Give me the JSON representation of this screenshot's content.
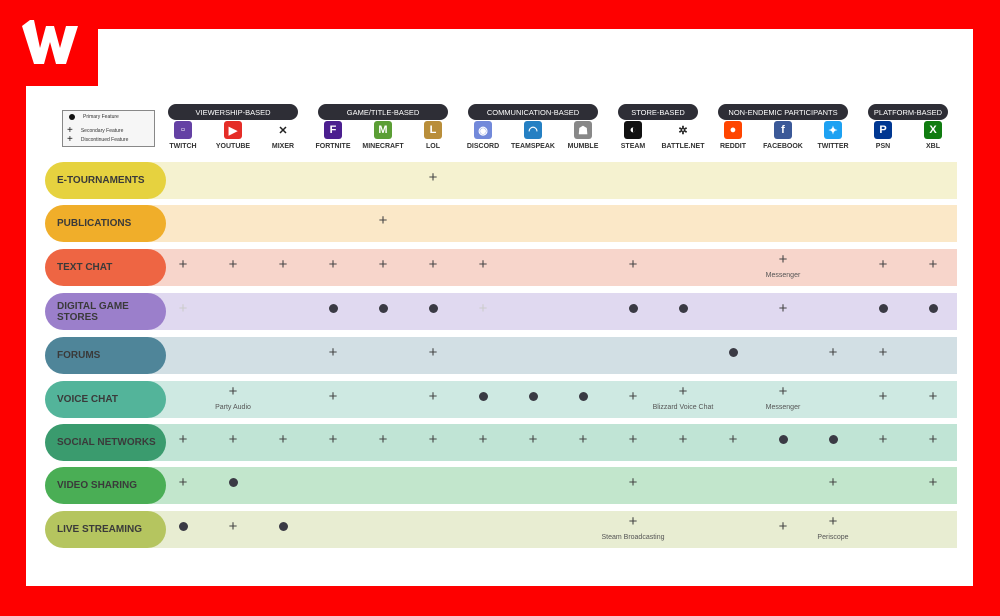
{
  "brand": {
    "logo_text": "W",
    "bg": "#fe0000"
  },
  "legend": {
    "primary": "Primary Feature",
    "secondary": "Secondary Feature",
    "discontinued": "Discontinued Feature"
  },
  "groups": [
    {
      "label": "VIEWERSHIP-BASED",
      "start": 0,
      "end": 2
    },
    {
      "label": "GAME/TITLE-BASED",
      "start": 3,
      "end": 5
    },
    {
      "label": "COMMUNICATION-BASED",
      "start": 6,
      "end": 8
    },
    {
      "label": "STORE-BASED",
      "start": 9,
      "end": 10
    },
    {
      "label": "NON-ENDEMIC PARTICIPANTS",
      "start": 11,
      "end": 13
    },
    {
      "label": "PLATFORM-BASED",
      "start": 14,
      "end": 15
    }
  ],
  "platforms": [
    {
      "name": "TWITCH",
      "icon": "twitch-icon",
      "color": "#6441a4",
      "glyph": "▫"
    },
    {
      "name": "YOUTUBE",
      "icon": "youtube-icon",
      "color": "#e52d27",
      "glyph": "▶"
    },
    {
      "name": "MIXER",
      "icon": "mixer-icon",
      "color": "#ffffff",
      "glyph": "✕"
    },
    {
      "name": "FORTNITE",
      "icon": "fortnite-icon",
      "color": "#4b1f8f",
      "glyph": "F"
    },
    {
      "name": "MINECRAFT",
      "icon": "minecraft-icon",
      "color": "#5b9e35",
      "glyph": "M"
    },
    {
      "name": "LOL",
      "icon": "lol-icon",
      "color": "#b98e3a",
      "glyph": "L"
    },
    {
      "name": "DISCORD",
      "icon": "discord-icon",
      "color": "#7289da",
      "glyph": "◉"
    },
    {
      "name": "TEAMSPEAK",
      "icon": "teamspeak-icon",
      "color": "#2580c3",
      "glyph": "◠"
    },
    {
      "name": "MUMBLE",
      "icon": "mumble-icon",
      "color": "#888888",
      "glyph": "☗"
    },
    {
      "name": "STEAM",
      "icon": "steam-icon",
      "color": "#111111",
      "glyph": "◐"
    },
    {
      "name": "BATTLE.NET",
      "icon": "battlenet-icon",
      "color": "#ffffff",
      "glyph": "✲"
    },
    {
      "name": "REDDIT",
      "icon": "reddit-icon",
      "color": "#ff4500",
      "glyph": "●"
    },
    {
      "name": "FACEBOOK",
      "icon": "facebook-icon",
      "color": "#3b5998",
      "glyph": "f"
    },
    {
      "name": "TWITTER",
      "icon": "twitter-icon",
      "color": "#1da1f2",
      "glyph": "✦"
    },
    {
      "name": "PSN",
      "icon": "playstation-icon",
      "color": "#003791",
      "glyph": "P"
    },
    {
      "name": "XBL",
      "icon": "xbox-icon",
      "color": "#107c10",
      "glyph": "X"
    }
  ],
  "rows": [
    {
      "label": "E-TOURNAMENTS",
      "pill": "#e6d23f",
      "band": "#f5f2d0",
      "cells": [
        "",
        "",
        "",
        "",
        "",
        "s",
        "",
        "",
        "",
        "",
        "",
        "",
        "",
        "",
        "",
        ""
      ],
      "notes": {}
    },
    {
      "label": "PUBLICATIONS",
      "pill": "#f0ae2a",
      "band": "#fbe8c8",
      "cells": [
        "",
        "",
        "",
        "",
        "s",
        "",
        "",
        "",
        "",
        "",
        "",
        "",
        "",
        "",
        "",
        ""
      ],
      "notes": {}
    },
    {
      "label": "TEXT CHAT",
      "pill": "#ee6543",
      "band": "#f7d5cb",
      "cells": [
        "s",
        "s",
        "s",
        "s",
        "s",
        "s",
        "s",
        "",
        "",
        "s",
        "",
        "",
        "s",
        "",
        "s",
        "s"
      ],
      "notes": {
        "12": "Messenger"
      }
    },
    {
      "label": "DIGITAL GAME STORES",
      "pill": "#9b7fcb",
      "band": "#e0d9f0",
      "cells": [
        "d",
        "",
        "",
        "p",
        "p",
        "p",
        "d",
        "",
        "",
        "p",
        "p",
        "",
        "s",
        "",
        "p",
        "p"
      ],
      "notes": {}
    },
    {
      "label": "FORUMS",
      "pill": "#4f8599",
      "band": "#d2dfe4",
      "cells": [
        "",
        "",
        "",
        "s",
        "",
        "s",
        "",
        "",
        "",
        "",
        "",
        "p",
        "",
        "s",
        "s",
        ""
      ],
      "notes": {}
    },
    {
      "label": "VOICE CHAT",
      "pill": "#53b49a",
      "band": "#cee9e2",
      "cells": [
        "",
        "s",
        "",
        "s",
        "",
        "s",
        "p",
        "p",
        "p",
        "s",
        "s",
        "",
        "s",
        "",
        "s",
        "s"
      ],
      "notes": {
        "1": "Party Audio",
        "10": "Blizzard Voice Chat",
        "12": "Messenger"
      }
    },
    {
      "label": "SOCIAL NETWORKS",
      "pill": "#3a9b6e",
      "band": "#c0e4d5",
      "cells": [
        "s",
        "s",
        "s",
        "s",
        "s",
        "s",
        "s",
        "s",
        "s",
        "s",
        "s",
        "s",
        "p",
        "p",
        "s",
        "s"
      ],
      "notes": {}
    },
    {
      "label": "VIDEO SHARING",
      "pill": "#4aae55",
      "band": "#c2e6cc",
      "cells": [
        "s",
        "p",
        "",
        "",
        "",
        "",
        "",
        "",
        "",
        "s",
        "",
        "",
        "",
        "s",
        "",
        "s"
      ],
      "notes": {}
    },
    {
      "label": "LIVE STREAMING",
      "pill": "#b5c55f",
      "band": "#e8edd2",
      "cells": [
        "p",
        "s",
        "p",
        "",
        "",
        "",
        "",
        "",
        "",
        "s",
        "",
        "",
        "s",
        "s",
        "",
        ""
      ],
      "notes": {
        "9": "Steam Broadcasting",
        "13": "Periscope"
      }
    }
  ]
}
